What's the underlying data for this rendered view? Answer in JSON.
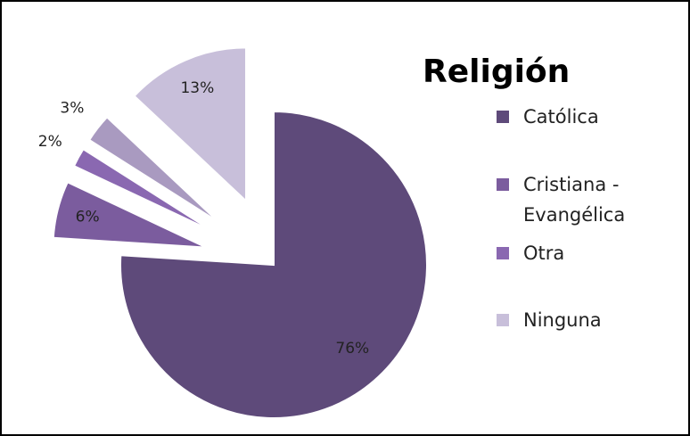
{
  "chart_data": {
    "type": "pie",
    "title": "Religión",
    "categories": [
      "Católica",
      "Cristiana - Evangélica",
      "Otra",
      null,
      "Ninguna"
    ],
    "values": [
      76,
      6,
      2,
      3,
      13
    ],
    "value_labels": [
      "76%",
      "6%",
      "2%",
      "3%",
      "13%"
    ],
    "colors": [
      "#5e4a7a",
      "#7b5c9e",
      "#8a68b1",
      "#a99ac0",
      "#c8bfda"
    ],
    "legend": "right"
  }
}
